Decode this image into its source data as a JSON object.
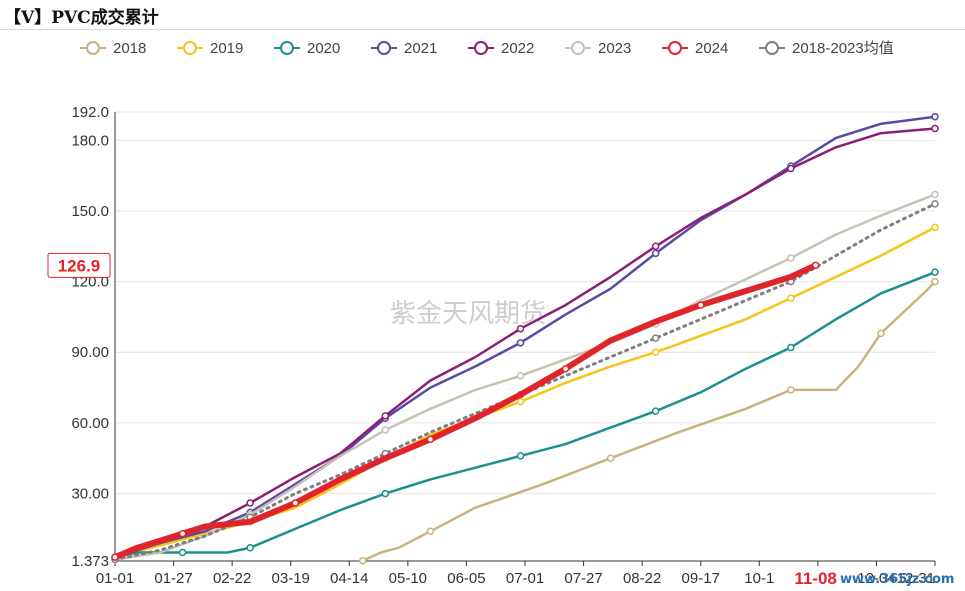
{
  "header": {
    "title": "【V】PVC成交累计"
  },
  "watermark": "紫金天风期货",
  "footer_mark": "www.365jz.com",
  "chart_data": {
    "type": "line",
    "title": "【V】PVC成交累计",
    "xlabel": "",
    "ylabel": "",
    "grid": "horizontal",
    "legend_position": "top",
    "x_ticks": [
      "01-01",
      "01-27",
      "02-22",
      "03-19",
      "04-14",
      "05-10",
      "06-05",
      "07-01",
      "07-27",
      "08-22",
      "09-17",
      "10-1",
      "11-08",
      "12-04",
      "12-31"
    ],
    "y_ticks": [
      "1.373",
      "30.00",
      "60.00",
      "90.00",
      "120.0",
      "150.0",
      "180.0",
      "192.0"
    ],
    "y_tick_values": [
      1.373,
      30,
      60,
      90,
      120,
      150,
      180,
      192
    ],
    "ylim": [
      1.373,
      192
    ],
    "x_range_days": [
      0,
      364
    ],
    "highlight": {
      "value_label": "126.9",
      "value": 126.9,
      "date_label": "11-08",
      "date_day": 311
    },
    "series": [
      {
        "name": "2018",
        "color": "#c8b27e",
        "width": 2.5,
        "dashed": false,
        "x": [
          110,
          118,
          126,
          140,
          160,
          190,
          220,
          250,
          280,
          300,
          320,
          330,
          340,
          360,
          364
        ],
        "y": [
          1.5,
          5,
          7,
          14,
          24,
          34,
          45,
          56,
          66,
          74,
          74,
          84,
          98,
          116,
          120
        ]
      },
      {
        "name": "2019",
        "color": "#f5c518",
        "width": 2.5,
        "dashed": false,
        "x": [
          0,
          20,
          40,
          60,
          80,
          100,
          120,
          140,
          160,
          180,
          200,
          220,
          240,
          260,
          280,
          300,
          320,
          340,
          364
        ],
        "y": [
          3,
          8,
          13,
          18,
          24,
          34,
          45,
          55,
          62,
          69,
          77,
          84,
          90,
          97,
          104,
          113,
          122,
          131,
          143
        ]
      },
      {
        "name": "2020",
        "color": "#1e8f8f",
        "width": 2.5,
        "dashed": false,
        "x": [
          0,
          10,
          20,
          30,
          40,
          50,
          60,
          80,
          100,
          120,
          140,
          160,
          180,
          200,
          220,
          240,
          260,
          280,
          300,
          320,
          340,
          364
        ],
        "y": [
          3,
          5,
          5,
          5,
          5,
          5,
          7,
          15,
          23,
          30,
          36,
          41,
          46,
          51,
          58,
          65,
          73,
          83,
          92,
          104,
          115,
          124
        ]
      },
      {
        "name": "2021",
        "color": "#5a4aa8",
        "width": 2.5,
        "dashed": false,
        "x": [
          0,
          20,
          40,
          60,
          80,
          100,
          120,
          140,
          160,
          180,
          200,
          220,
          240,
          260,
          280,
          300,
          320,
          340,
          364
        ],
        "y": [
          3,
          9,
          14,
          22,
          34,
          46,
          62,
          75,
          84,
          94,
          106,
          117,
          132,
          146,
          157,
          169,
          181,
          187,
          190
        ]
      },
      {
        "name": "2022",
        "color": "#8b1f74",
        "width": 2.5,
        "dashed": false,
        "x": [
          0,
          20,
          40,
          60,
          80,
          100,
          120,
          140,
          160,
          180,
          200,
          220,
          240,
          260,
          280,
          300,
          320,
          340,
          364
        ],
        "y": [
          3,
          10,
          16,
          26,
          37,
          47,
          63,
          78,
          88,
          100,
          110,
          122,
          135,
          147,
          157,
          168,
          177,
          183,
          185
        ]
      },
      {
        "name": "2023",
        "color": "#c9c1b3",
        "width": 2.5,
        "dashed": false,
        "x": [
          0,
          20,
          40,
          60,
          80,
          100,
          120,
          140,
          160,
          180,
          200,
          220,
          240,
          260,
          280,
          300,
          320,
          340,
          364
        ],
        "y": [
          2,
          5,
          12,
          21,
          33,
          46,
          57,
          66,
          74,
          80,
          87,
          94,
          102,
          112,
          121,
          130,
          140,
          148,
          157
        ]
      },
      {
        "name": "2024",
        "color": "#e0242c",
        "width": 6,
        "dashed": false,
        "x": [
          0,
          10,
          20,
          30,
          40,
          60,
          80,
          100,
          120,
          140,
          160,
          180,
          200,
          220,
          240,
          260,
          280,
          300,
          311
        ],
        "y": [
          3,
          7,
          10,
          13,
          16,
          18,
          26,
          36,
          45,
          53,
          62,
          72,
          83,
          95,
          103,
          110,
          116,
          122,
          126.9
        ]
      },
      {
        "name": "2018-2023均值",
        "color": "#7f7f7f",
        "width": 2.5,
        "dashed": true,
        "x": [
          0,
          20,
          40,
          60,
          80,
          100,
          120,
          140,
          160,
          180,
          200,
          220,
          240,
          260,
          280,
          300,
          320,
          340,
          364
        ],
        "y": [
          2,
          6,
          12,
          20,
          30,
          38,
          47,
          56,
          64,
          72,
          80,
          88,
          96,
          104,
          112,
          120,
          131,
          142,
          153
        ]
      }
    ]
  }
}
